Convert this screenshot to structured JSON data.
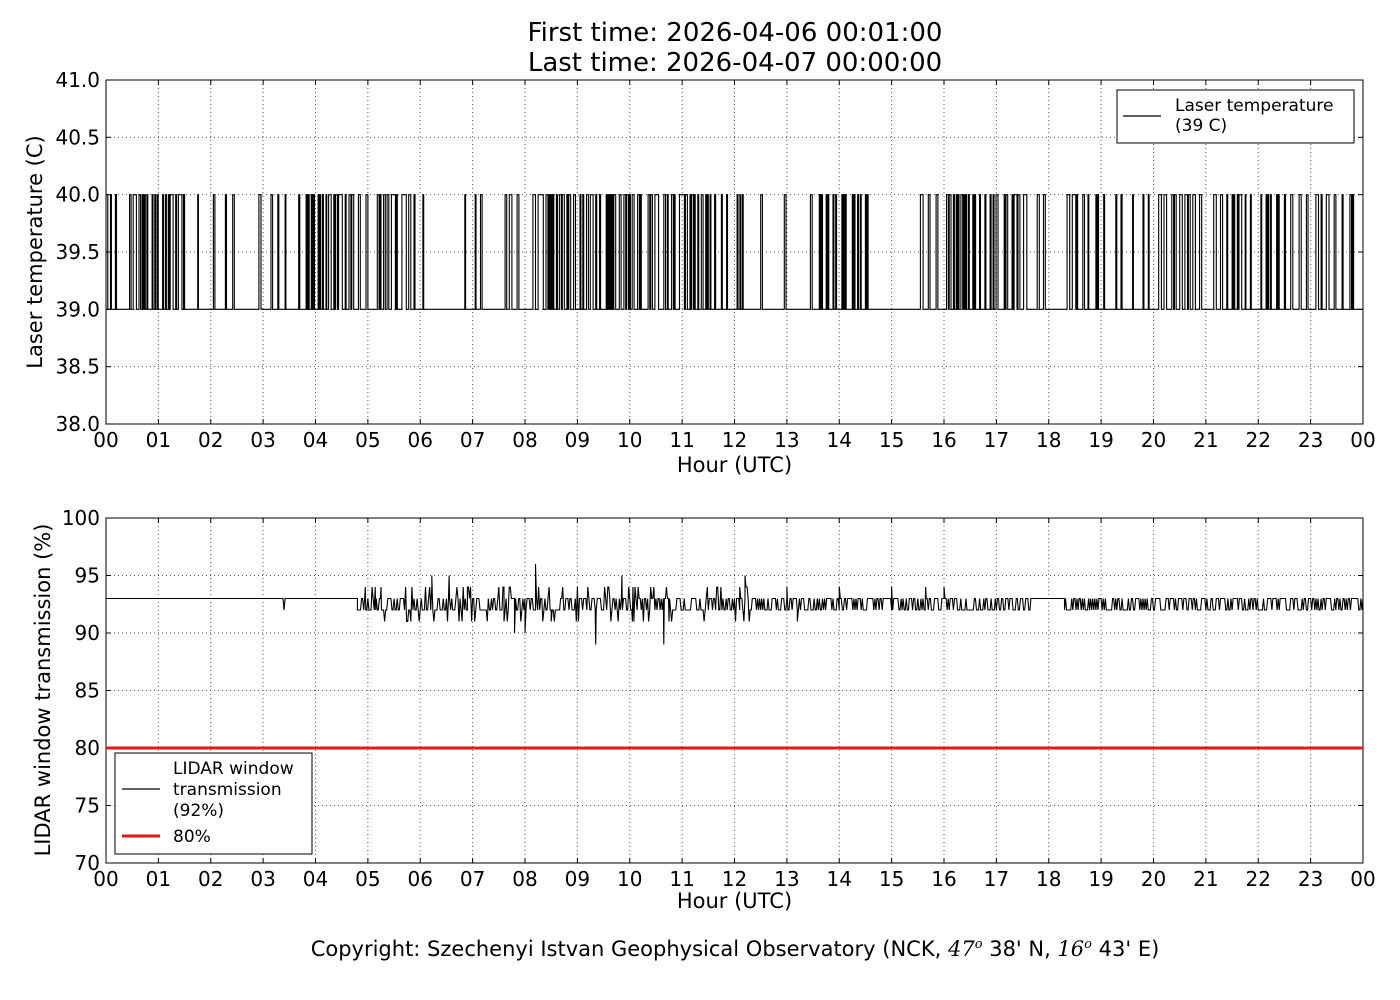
{
  "title": {
    "line1": "First time: 2026-04-06 00:01:00",
    "line2": "Last time: 2026-04-07 00:00:00"
  },
  "footer": {
    "prefix": "Copyright: Szechenyi Istvan Geophysical Observatory (NCK, ",
    "lat_deg": "47",
    "lat_min": " 38' N, ",
    "lon_deg": "16",
    "lon_min": " 43' E)"
  },
  "colors": {
    "series": "#000000",
    "threshold": "#e31a1c",
    "grid": "#555555"
  },
  "chart_data": [
    {
      "type": "line",
      "xlabel": "Hour (UTC)",
      "ylabel": "Laser temperature (C)",
      "xlim": [
        0,
        24
      ],
      "ylim": [
        38.0,
        41.0
      ],
      "xtick_labels": [
        "00",
        "01",
        "02",
        "03",
        "04",
        "05",
        "06",
        "07",
        "08",
        "09",
        "10",
        "11",
        "12",
        "13",
        "14",
        "15",
        "16",
        "17",
        "18",
        "19",
        "20",
        "21",
        "22",
        "23",
        "00"
      ],
      "ytick_labels": [
        "38.0",
        "38.5",
        "39.0",
        "39.5",
        "40.0",
        "40.5",
        "41.0"
      ],
      "grid": true,
      "legend_position": "top-right",
      "series": [
        {
          "name": "Laser temperature\n(39 C)",
          "color": "#000000",
          "baseline": 39.0,
          "high": 40.0,
          "high_segments": [
            [
              0.0,
              0.12
            ],
            [
              0.18,
              0.2
            ],
            [
              0.45,
              0.48
            ],
            [
              0.52,
              0.6
            ],
            [
              0.63,
              0.66
            ],
            [
              0.69,
              0.75
            ],
            [
              0.78,
              0.85
            ],
            [
              0.88,
              0.95
            ],
            [
              0.98,
              1.05
            ],
            [
              1.08,
              1.3
            ],
            [
              1.33,
              1.45
            ],
            [
              1.48,
              1.5
            ],
            [
              1.75,
              1.78
            ],
            [
              2.05,
              2.08
            ],
            [
              2.28,
              2.3
            ],
            [
              2.42,
              2.45
            ],
            [
              2.92,
              2.98
            ],
            [
              3.15,
              3.18
            ],
            [
              3.28,
              3.32
            ],
            [
              3.42,
              3.45
            ],
            [
              3.68,
              3.72
            ],
            [
              3.82,
              3.88
            ],
            [
              3.92,
              4.0
            ],
            [
              4.05,
              4.15
            ],
            [
              4.2,
              4.3
            ],
            [
              4.35,
              5.0
            ],
            [
              5.18,
              5.25
            ],
            [
              5.3,
              5.4
            ],
            [
              5.45,
              5.6
            ],
            [
              5.65,
              5.75
            ],
            [
              5.78,
              5.82
            ],
            [
              5.88,
              5.92
            ],
            [
              6.05,
              6.1
            ],
            [
              6.85,
              6.88
            ],
            [
              7.05,
              7.08
            ],
            [
              7.15,
              7.18
            ],
            [
              7.62,
              7.65
            ],
            [
              7.7,
              7.8
            ],
            [
              7.85,
              7.95
            ],
            [
              8.15,
              8.2
            ],
            [
              8.25,
              8.35
            ],
            [
              8.4,
              8.55
            ],
            [
              8.6,
              8.75
            ],
            [
              8.8,
              9.0
            ],
            [
              9.05,
              9.3
            ],
            [
              9.35,
              9.5
            ],
            [
              9.55,
              9.75
            ],
            [
              9.8,
              10.1
            ],
            [
              10.15,
              10.22
            ],
            [
              10.35,
              10.45
            ],
            [
              10.48,
              10.62
            ],
            [
              10.65,
              10.75
            ],
            [
              10.8,
              10.9
            ],
            [
              10.95,
              11.1
            ],
            [
              11.15,
              11.25
            ],
            [
              11.3,
              11.4
            ],
            [
              11.45,
              11.55
            ],
            [
              11.62,
              11.68
            ],
            [
              11.75,
              11.8
            ],
            [
              11.85,
              11.9
            ],
            [
              12.05,
              12.12
            ],
            [
              12.15,
              12.2
            ],
            [
              12.5,
              12.55
            ],
            [
              12.95,
              13.0
            ],
            [
              13.45,
              13.5
            ],
            [
              13.62,
              13.68
            ],
            [
              13.75,
              13.8
            ],
            [
              13.88,
              13.95
            ],
            [
              14.05,
              14.15
            ],
            [
              14.25,
              14.3
            ],
            [
              14.35,
              14.42
            ],
            [
              14.5,
              14.55
            ],
            [
              15.55,
              15.6
            ],
            [
              15.7,
              15.75
            ],
            [
              15.85,
              15.9
            ],
            [
              16.05,
              16.15
            ],
            [
              16.18,
              16.5
            ],
            [
              16.55,
              16.62
            ],
            [
              16.68,
              16.75
            ],
            [
              16.78,
              16.82
            ],
            [
              16.88,
              17.05
            ],
            [
              17.15,
              17.25
            ],
            [
              17.3,
              17.45
            ],
            [
              17.52,
              17.6
            ],
            [
              17.78,
              17.82
            ],
            [
              17.9,
              17.95
            ],
            [
              18.35,
              18.4
            ],
            [
              18.45,
              18.55
            ],
            [
              18.65,
              18.7
            ],
            [
              18.75,
              18.78
            ],
            [
              18.9,
              18.95
            ],
            [
              19.05,
              19.1
            ],
            [
              19.28,
              19.32
            ],
            [
              19.38,
              19.42
            ],
            [
              19.6,
              19.65
            ],
            [
              19.8,
              19.85
            ],
            [
              19.9,
              19.95
            ],
            [
              20.1,
              20.15
            ],
            [
              20.2,
              20.3
            ],
            [
              20.35,
              20.45
            ],
            [
              20.5,
              20.55
            ],
            [
              20.6,
              20.7
            ],
            [
              20.75,
              20.8
            ],
            [
              20.88,
              20.92
            ],
            [
              21.15,
              21.2
            ],
            [
              21.28,
              21.32
            ],
            [
              21.4,
              21.45
            ],
            [
              21.5,
              21.55
            ],
            [
              21.6,
              21.7
            ],
            [
              21.75,
              21.78
            ],
            [
              21.85,
              21.9
            ],
            [
              22.05,
              22.1
            ],
            [
              22.15,
              22.25
            ],
            [
              22.35,
              22.4
            ],
            [
              22.5,
              22.52
            ],
            [
              22.62,
              22.68
            ],
            [
              22.78,
              22.82
            ],
            [
              22.92,
              22.95
            ],
            [
              23.1,
              23.15
            ],
            [
              23.2,
              23.22
            ],
            [
              23.3,
              23.35
            ],
            [
              23.45,
              23.5
            ],
            [
              23.6,
              23.62
            ],
            [
              23.75,
              23.78
            ],
            [
              23.8,
              23.82
            ]
          ]
        }
      ]
    },
    {
      "type": "line",
      "xlabel": "Hour (UTC)",
      "ylabel": "LIDAR window transmission (%)",
      "xlim": [
        0,
        24
      ],
      "ylim": [
        70,
        100
      ],
      "xtick_labels": [
        "00",
        "01",
        "02",
        "03",
        "04",
        "05",
        "06",
        "07",
        "08",
        "09",
        "10",
        "11",
        "12",
        "13",
        "14",
        "15",
        "16",
        "17",
        "18",
        "19",
        "20",
        "21",
        "22",
        "23",
        "00"
      ],
      "ytick_labels": [
        "70",
        "75",
        "80",
        "85",
        "90",
        "95",
        "100"
      ],
      "grid": true,
      "legend_position": "bottom-left",
      "series": [
        {
          "name": "LIDAR window\ntransmission\n(92%)",
          "color": "#000000",
          "baseline": 93,
          "segments": [
            {
              "x": [
                0.0,
                3.38,
                3.4,
                3.42,
                4.8
              ],
              "y": [
                93,
                93,
                92,
                93,
                93
              ]
            },
            {
              "x_start": 4.8,
              "x_end": 12.3,
              "amplitude": 1.6,
              "seed": 11,
              "spikes": [
                [
                  4.85,
                  92
                ],
                [
                  4.95,
                  94
                ],
                [
                  5.15,
                  92
                ],
                [
                  5.25,
                  94
                ],
                [
                  6.22,
                  95
                ],
                [
                  6.55,
                  95
                ],
                [
                  6.9,
                  94
                ],
                [
                  7.6,
                  91
                ],
                [
                  7.7,
                  94
                ],
                [
                  7.8,
                  90
                ],
                [
                  8.0,
                  90
                ],
                [
                  8.2,
                  96
                ],
                [
                  8.5,
                  91
                ],
                [
                  9.35,
                  89
                ],
                [
                  9.85,
                  95
                ],
                [
                  10.05,
                  91
                ],
                [
                  10.65,
                  89
                ],
                [
                  10.75,
                  91
                ],
                [
                  12.1,
                  94
                ],
                [
                  12.2,
                  95
                ]
              ]
            },
            {
              "x_start": 12.3,
              "x_end": 17.7,
              "amplitude": 0.8,
              "seed": 23,
              "spikes": [
                [
                  13.0,
                  94
                ],
                [
                  13.2,
                  91
                ],
                [
                  14.0,
                  94
                ],
                [
                  15.0,
                  94
                ],
                [
                  15.65,
                  94
                ],
                [
                  16.0,
                  94
                ]
              ]
            },
            {
              "x": [
                17.7,
                18.3
              ],
              "y": [
                93,
                93
              ]
            },
            {
              "x_start": 18.3,
              "x_end": 24.0,
              "amplitude": 0.9,
              "seed": 37,
              "spikes": []
            }
          ]
        },
        {
          "name": "80%",
          "color": "#e31a1c",
          "x": [
            0,
            24
          ],
          "y": [
            80,
            80
          ]
        }
      ]
    }
  ]
}
